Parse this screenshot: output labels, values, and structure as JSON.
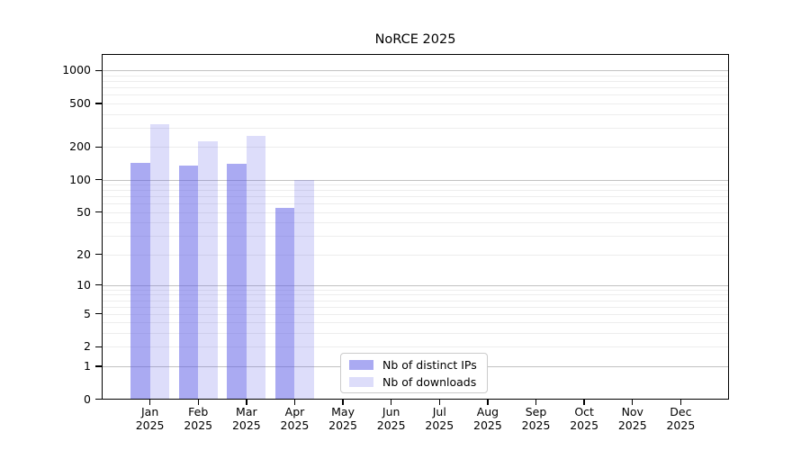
{
  "chart_data": {
    "type": "bar",
    "title": "NoRCE 2025",
    "xlabel": "",
    "ylabel": "",
    "y_scale": "log1p",
    "ylim": [
      0,
      1400
    ],
    "grid": "both",
    "legend_position": "lower center",
    "y_tick_values": [
      0,
      1,
      2,
      5,
      10,
      20,
      50,
      100,
      200,
      500,
      1000
    ],
    "y_tick_labels": [
      "0",
      "1",
      "2",
      "5",
      "10",
      "20",
      "50",
      "100",
      "200",
      "500",
      "1000"
    ],
    "categories": [
      "Jan",
      "Feb",
      "Mar",
      "Apr",
      "May",
      "Jun",
      "Jul",
      "Aug",
      "Sep",
      "Oct",
      "Nov",
      "Dec"
    ],
    "category_year": "2025",
    "series": [
      {
        "name": "Nb of distinct IPs",
        "color": "rgba(85,85,230,0.5)",
        "values": [
          142,
          135,
          140,
          55,
          null,
          null,
          null,
          null,
          null,
          null,
          null,
          null
        ]
      },
      {
        "name": "Nb of downloads",
        "color": "rgba(85,85,230,0.2)",
        "values": [
          320,
          225,
          250,
          100,
          null,
          null,
          null,
          null,
          null,
          null,
          null,
          null
        ]
      }
    ]
  }
}
